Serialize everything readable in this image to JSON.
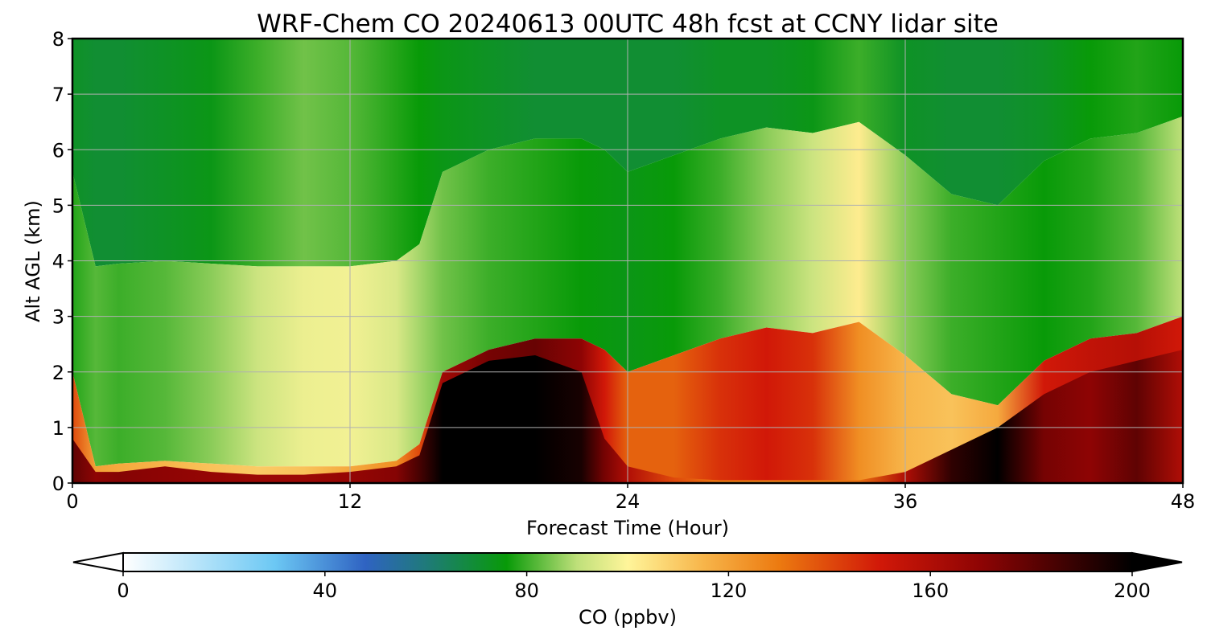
{
  "chart_data": [
    {
      "type": "heatmap",
      "title": "WRF-Chem CO  20240613 00UTC 48h fcst at CCNY lidar site",
      "xlabel": "Forecast Time (Hour)",
      "ylabel": "Alt AGL (km)",
      "xlim": [
        0,
        48
      ],
      "ylim": [
        0,
        8
      ],
      "x_ticks": [
        0,
        12,
        24,
        36,
        48
      ],
      "y_ticks": [
        0,
        1,
        2,
        3,
        4,
        5,
        6,
        7,
        8
      ],
      "grid": true,
      "z_units": "ppbv",
      "x": [
        0,
        1,
        2,
        4,
        6,
        8,
        10,
        12,
        14,
        15,
        16,
        18,
        20,
        22,
        23,
        24,
        26,
        28,
        30,
        32,
        34,
        36,
        38,
        40,
        42,
        44,
        46,
        48
      ],
      "boundary_top_km": [
        2.0,
        0.3,
        0.35,
        0.4,
        0.35,
        0.3,
        0.3,
        0.3,
        0.4,
        0.7,
        2.0,
        2.4,
        2.6,
        2.6,
        2.4,
        2.0,
        2.3,
        2.6,
        2.8,
        2.7,
        2.9,
        2.3,
        1.6,
        1.4,
        2.2,
        2.6,
        2.7,
        3.0
      ],
      "polluted_core_top_km": [
        0.8,
        0.2,
        0.2,
        0.3,
        0.2,
        0.15,
        0.15,
        0.2,
        0.3,
        0.5,
        1.8,
        2.2,
        2.3,
        2.0,
        0.8,
        0.3,
        0.1,
        0.05,
        0.05,
        0.05,
        0.05,
        0.2,
        0.6,
        1.0,
        1.6,
        2.0,
        2.2,
        2.4
      ],
      "layer_mean_ppbv": {
        "core": [
          180,
          170,
          172,
          170,
          168,
          166,
          166,
          168,
          172,
          185,
          200,
          200,
          200,
          195,
          175,
          160,
          140,
          130,
          128,
          130,
          132,
          160,
          190,
          200,
          175,
          170,
          180,
          160
        ],
        "boundary_layer": [
          140,
          120,
          118,
          115,
          112,
          110,
          112,
          118,
          125,
          140,
          165,
          175,
          178,
          170,
          150,
          135,
          135,
          145,
          150,
          145,
          125,
          115,
          112,
          118,
          150,
          155,
          158,
          150
        ],
        "mid_troposphere": [
          78,
          82,
          80,
          82,
          86,
          92,
          97,
          98,
          94,
          88,
          84,
          80,
          78,
          76,
          75,
          74,
          76,
          80,
          86,
          92,
          102,
          86,
          80,
          78,
          76,
          78,
          82,
          90
        ],
        "upper_troposphere": [
          72,
          70,
          70,
          72,
          74,
          80,
          84,
          82,
          78,
          76,
          74,
          72,
          70,
          70,
          70,
          70,
          70,
          72,
          72,
          74,
          80,
          72,
          70,
          70,
          72,
          76,
          78,
          76
        ]
      }
    },
    {
      "type": "colorbar",
      "label": "CO  (ppbv)",
      "min": 0,
      "max": 200,
      "ticks": [
        0,
        40,
        80,
        120,
        160,
        200
      ],
      "extend": "both",
      "colors": [
        {
          "v": 0,
          "c": "#ffffff"
        },
        {
          "v": 30,
          "c": "#6cc8f4"
        },
        {
          "v": 48,
          "c": "#2f63c2"
        },
        {
          "v": 60,
          "c": "#1f7a7a"
        },
        {
          "v": 76,
          "c": "#089a08"
        },
        {
          "v": 90,
          "c": "#bfe07a"
        },
        {
          "v": 100,
          "c": "#fff59a"
        },
        {
          "v": 115,
          "c": "#f7b54a"
        },
        {
          "v": 130,
          "c": "#ec7a10"
        },
        {
          "v": 150,
          "c": "#d11808"
        },
        {
          "v": 170,
          "c": "#8e0404"
        },
        {
          "v": 200,
          "c": "#000000"
        }
      ]
    }
  ]
}
